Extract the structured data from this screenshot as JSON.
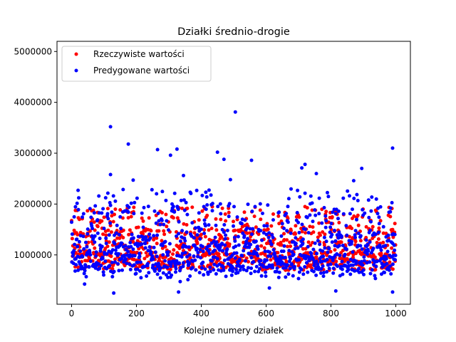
{
  "chart_data": {
    "type": "scatter",
    "title": "Działki średnio-drogie",
    "xlabel": "Kolejne numery działek",
    "ylabel": "",
    "xlim": [
      -45,
      1045
    ],
    "ylim": [
      30000,
      5200000
    ],
    "x_ticks": [
      0,
      200,
      400,
      600,
      800,
      1000
    ],
    "x_tick_labels": [
      "0",
      "200",
      "400",
      "600",
      "800",
      "1000"
    ],
    "y_ticks": [
      1000000,
      2000000,
      3000000,
      4000000,
      5000000
    ],
    "y_tick_labels": [
      "1000000",
      "2000000",
      "3000000",
      "4000000",
      "5000000"
    ],
    "grid": false,
    "legend_position": "top-left",
    "n_points": 1000,
    "series": [
      {
        "name": "Rzeczywiste wartości",
        "color": "#ff0000",
        "min": 610000,
        "max": 2000000,
        "typical_range": [
          620000,
          1950000
        ]
      },
      {
        "name": "Predygowane wartości",
        "color": "#0000ff",
        "typical_range": [
          400000,
          2100000
        ],
        "outliers": [
          {
            "x": 120,
            "y": 3520000
          },
          {
            "x": 175,
            "y": 3180000
          },
          {
            "x": 265,
            "y": 3070000
          },
          {
            "x": 305,
            "y": 2960000
          },
          {
            "x": 325,
            "y": 3080000
          },
          {
            "x": 450,
            "y": 3020000
          },
          {
            "x": 470,
            "y": 2880000
          },
          {
            "x": 505,
            "y": 3810000
          },
          {
            "x": 555,
            "y": 2860000
          },
          {
            "x": 720,
            "y": 2780000
          },
          {
            "x": 710,
            "y": 2710000
          },
          {
            "x": 755,
            "y": 2600000
          },
          {
            "x": 870,
            "y": 2460000
          },
          {
            "x": 895,
            "y": 2700000
          },
          {
            "x": 990,
            "y": 3100000
          },
          {
            "x": 120,
            "y": 2580000
          },
          {
            "x": 345,
            "y": 2560000
          },
          {
            "x": 190,
            "y": 2470000
          },
          {
            "x": 490,
            "y": 2480000
          },
          {
            "x": 20,
            "y": 2270000
          },
          {
            "x": 130,
            "y": 250000
          },
          {
            "x": 330,
            "y": 270000
          },
          {
            "x": 610,
            "y": 350000
          },
          {
            "x": 815,
            "y": 290000
          },
          {
            "x": 990,
            "y": 270000
          }
        ]
      }
    ]
  }
}
